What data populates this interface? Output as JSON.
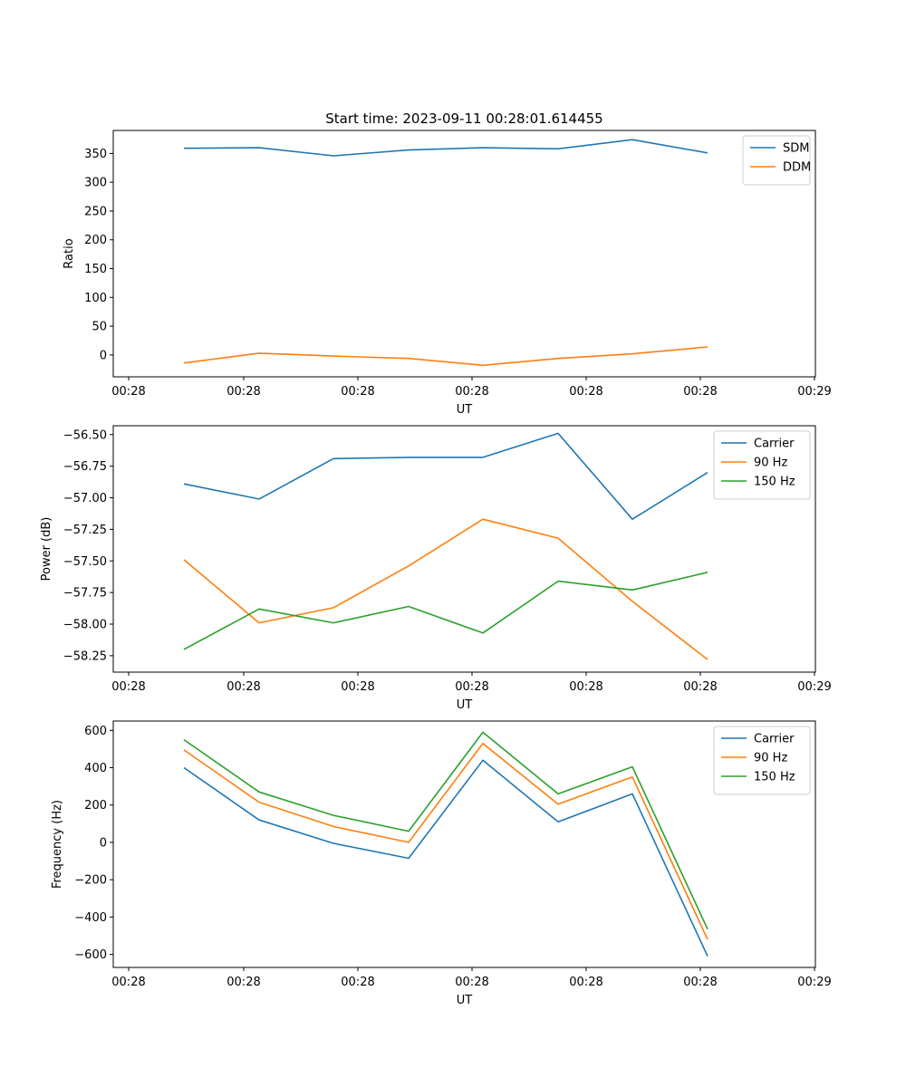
{
  "title": "Start time: 2023-09-11 00:28:01.614455",
  "chart_data": [
    {
      "type": "line",
      "xlabel": "UT",
      "ylabel": "Ratio",
      "x_tick_labels": [
        "00:28",
        "00:28",
        "00:28",
        "00:28",
        "00:28",
        "00:28",
        "00:28",
        "00:29"
      ],
      "y_ticks": [
        0,
        50,
        100,
        150,
        200,
        250,
        300,
        350
      ],
      "y_tick_labels": [
        "0",
        "50",
        "100",
        "150",
        "200",
        "250",
        "300",
        "350"
      ],
      "ylim": [
        -38,
        390
      ],
      "legend_position": "top-right",
      "series": [
        {
          "name": "SDM",
          "color": "#1f77b4",
          "values": [
            359,
            360,
            346,
            356,
            360,
            358,
            374,
            351
          ]
        },
        {
          "name": "DDM",
          "color": "#ff7f0e",
          "values": [
            -14,
            3,
            -2,
            -6,
            -18,
            -6,
            2,
            14
          ]
        }
      ]
    },
    {
      "type": "line",
      "xlabel": "UT",
      "ylabel": "Power (dB)",
      "x_tick_labels": [
        "00:28",
        "00:28",
        "00:28",
        "00:28",
        "00:28",
        "00:28",
        "00:28",
        "00:29"
      ],
      "y_ticks": [
        -58.25,
        -58.0,
        -57.75,
        -57.5,
        -57.25,
        -57.0,
        -56.75,
        -56.5
      ],
      "y_tick_labels": [
        "−58.25",
        "−58.00",
        "−57.75",
        "−57.50",
        "−57.25",
        "−57.00",
        "−56.75",
        "−56.50"
      ],
      "ylim": [
        -58.38,
        -56.43
      ],
      "legend_position": "top-right",
      "series": [
        {
          "name": "Carrier",
          "color": "#1f77b4",
          "values": [
            -56.89,
            -57.01,
            -56.69,
            -56.68,
            -56.68,
            -56.49,
            -57.17,
            -56.8
          ]
        },
        {
          "name": "90 Hz",
          "color": "#ff7f0e",
          "values": [
            -57.49,
            -57.99,
            -57.87,
            -57.54,
            -57.17,
            -57.32,
            -57.82,
            -58.28
          ]
        },
        {
          "name": "150 Hz",
          "color": "#2ca02c",
          "values": [
            -58.2,
            -57.88,
            -57.99,
            -57.86,
            -58.07,
            -57.66,
            -57.73,
            -57.59
          ]
        }
      ]
    },
    {
      "type": "line",
      "xlabel": "UT",
      "ylabel": "Frequency (Hz)",
      "x_tick_labels": [
        "00:28",
        "00:28",
        "00:28",
        "00:28",
        "00:28",
        "00:28",
        "00:28",
        "00:29"
      ],
      "y_ticks": [
        -600,
        -400,
        -200,
        0,
        200,
        400,
        600
      ],
      "y_tick_labels": [
        "−600",
        "−400",
        "−200",
        "0",
        "200",
        "400",
        "600"
      ],
      "ylim": [
        -670,
        650
      ],
      "legend_position": "top-right",
      "series": [
        {
          "name": "Carrier",
          "color": "#1f77b4",
          "values": [
            400,
            120,
            -5,
            -85,
            440,
            110,
            260,
            -610
          ]
        },
        {
          "name": "90 Hz",
          "color": "#ff7f0e",
          "values": [
            495,
            215,
            85,
            0,
            530,
            205,
            350,
            -520
          ]
        },
        {
          "name": "150 Hz",
          "color": "#2ca02c",
          "values": [
            550,
            270,
            145,
            60,
            590,
            260,
            405,
            -465
          ]
        }
      ]
    }
  ]
}
